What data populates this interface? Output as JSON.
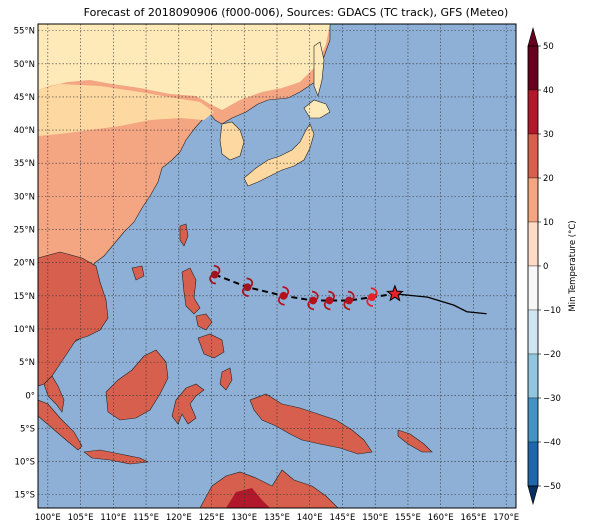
{
  "title": "Forecast of 2018090906 (f000-006), Sources: GDACS (TC track), GFS (Meteo)",
  "map": {
    "lon_labels": [
      "100°E",
      "105°E",
      "110°E",
      "115°E",
      "120°E",
      "125°E",
      "130°E",
      "135°E",
      "140°E",
      "145°E",
      "150°E",
      "155°E",
      "160°E",
      "165°E",
      "170°E"
    ],
    "lat_labels": [
      "55°N",
      "50°N",
      "45°N",
      "40°N",
      "35°N",
      "30°N",
      "25°N",
      "20°N",
      "15°N",
      "10°N",
      "5°N",
      "0°",
      "5°S",
      "10°S",
      "15°S"
    ],
    "extent": {
      "lon": [
        98.5,
        171.5
      ],
      "lat": [
        -17.0,
        56.0
      ]
    },
    "grid": true,
    "ocean_color": "#8fb0d6"
  },
  "colorbar": {
    "label": "Min Temperature (°C)",
    "ticks": [
      "50",
      "40",
      "30",
      "20",
      "10",
      "0",
      "−10",
      "−20",
      "−30",
      "−40",
      "−50"
    ],
    "extend": "both",
    "colors": [
      "#053061",
      "#2166ac",
      "#4393c3",
      "#92c5de",
      "#d1e5f0",
      "#f7f7f7",
      "#fddbc7",
      "#f4a582",
      "#d6604d",
      "#b2182b",
      "#67001f"
    ]
  },
  "track": {
    "forecast": [
      [
        125.5,
        18.2
      ],
      [
        130.5,
        16.3
      ],
      [
        136.0,
        15.0
      ],
      [
        140.5,
        14.3
      ],
      [
        143.0,
        14.3
      ],
      [
        146.0,
        14.3
      ],
      [
        149.5,
        14.8
      ],
      [
        153.0,
        15.3
      ]
    ],
    "past": [
      [
        153.0,
        15.3
      ],
      [
        158.0,
        14.8
      ],
      [
        162.0,
        13.6
      ],
      [
        164.0,
        12.6
      ],
      [
        167.0,
        12.3
      ]
    ],
    "storm_icons": [
      [
        125.5,
        18.2
      ],
      [
        130.5,
        16.3
      ],
      [
        136.0,
        15.0
      ],
      [
        140.5,
        14.3
      ],
      [
        143.0,
        14.3
      ],
      [
        146.0,
        14.3
      ],
      [
        149.5,
        14.8
      ]
    ],
    "current_position": [
      153.0,
      15.3
    ]
  }
}
